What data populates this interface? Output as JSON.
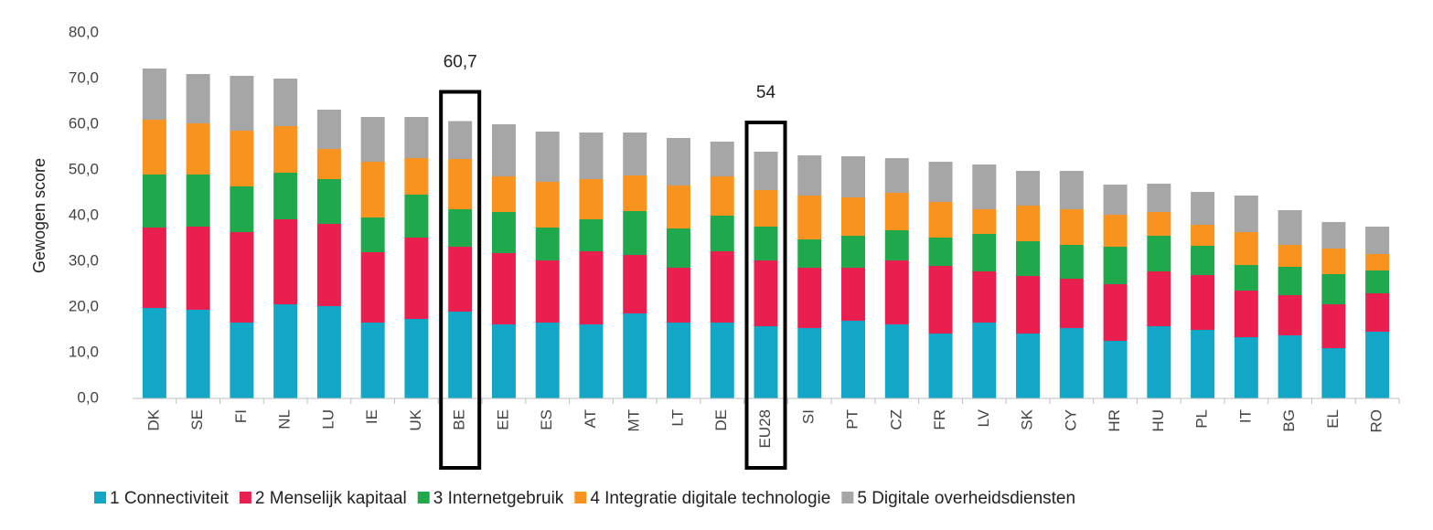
{
  "chart_data": {
    "type": "bar",
    "stacked": true,
    "y_label": "Gewogen score",
    "categories": [
      "DK",
      "SE",
      "FI",
      "NL",
      "LU",
      "IE",
      "UK",
      "BE",
      "EE",
      "ES",
      "AT",
      "MT",
      "LT",
      "DE",
      "EU28",
      "SI",
      "PT",
      "CZ",
      "FR",
      "LV",
      "SK",
      "CY",
      "HR",
      "HU",
      "PL",
      "IT",
      "BG",
      "EL",
      "RO"
    ],
    "series": [
      {
        "name": "1 Connectiviteit",
        "color": "#12a7c6",
        "values": [
          19.8,
          19.4,
          16.6,
          20.6,
          20.2,
          16.6,
          17.4,
          19,
          16.2,
          16.6,
          16.2,
          18.6,
          16.6,
          16.6,
          15.8,
          15.4,
          17,
          16.2,
          14.2,
          16.6,
          14.2,
          15.4,
          12.6,
          15.8,
          15,
          13.4,
          13.8,
          11,
          14.6
        ]
      },
      {
        "name": "2 Menselijk kapitaal",
        "color": "#e9204f",
        "values": [
          17.6,
          18.2,
          19.8,
          18.6,
          18,
          15.4,
          17.8,
          14.2,
          15.6,
          13.6,
          16,
          12.8,
          12,
          15.6,
          14.4,
          13.2,
          11.6,
          14,
          14.8,
          11.2,
          12.6,
          10.8,
          12.4,
          12,
          12,
          10.2,
          8.8,
          9.6,
          8.4
        ]
      },
      {
        "name": "3 Internetgebruik",
        "color": "#1fa84c",
        "values": [
          11.6,
          11.4,
          10,
          10.2,
          9.8,
          7.6,
          9.4,
          8.2,
          9,
          7.2,
          7,
          9.6,
          8.6,
          7.8,
          7.4,
          6.2,
          7,
          6.6,
          6.2,
          8.2,
          7.6,
          7.4,
          8.2,
          7.8,
          6.4,
          5.6,
          6.2,
          6.6,
          5
        ]
      },
      {
        "name": "4 Integratie digitale technologie",
        "color": "#f7931e",
        "values": [
          12,
          11.2,
          12.2,
          10.2,
          6.6,
          12.2,
          8,
          11,
          7.8,
          10,
          8.8,
          7.8,
          9.4,
          8.6,
          8,
          9.6,
          8.4,
          8.2,
          7.8,
          5.4,
          7.8,
          7.8,
          7,
          5.2,
          4.6,
          7.2,
          4.8,
          5.6,
          3.6
        ]
      },
      {
        "name": "5 Digitale overheidsdiensten",
        "color": "#a6a6a6",
        "values": [
          11.2,
          10.8,
          12,
          10.4,
          8.6,
          9.8,
          9,
          8.3,
          11.4,
          11,
          10.2,
          9.4,
          10.4,
          7.6,
          8.4,
          8.8,
          9,
          7.6,
          8.8,
          9.8,
          7.6,
          8.4,
          6.6,
          6.2,
          7.2,
          8,
          7.6,
          5.8,
          6
        ]
      }
    ],
    "annotations": [
      {
        "label": "60,7",
        "value": 60.7,
        "category": "BE"
      },
      {
        "label": "54",
        "value": 54,
        "category": "EU28"
      }
    ],
    "ylim": [
      0,
      80
    ],
    "yticks": [
      {
        "value": 0,
        "label": "0,0"
      },
      {
        "value": 10,
        "label": "10,0"
      },
      {
        "value": 20,
        "label": "20,0"
      },
      {
        "value": 30,
        "label": "30,0"
      },
      {
        "value": 40,
        "label": "40,0"
      },
      {
        "value": 50,
        "label": "50,0"
      },
      {
        "value": 60,
        "label": "60,0"
      },
      {
        "value": 70,
        "label": "70,0"
      },
      {
        "value": 80,
        "label": "80,0"
      }
    ],
    "grid": false
  }
}
